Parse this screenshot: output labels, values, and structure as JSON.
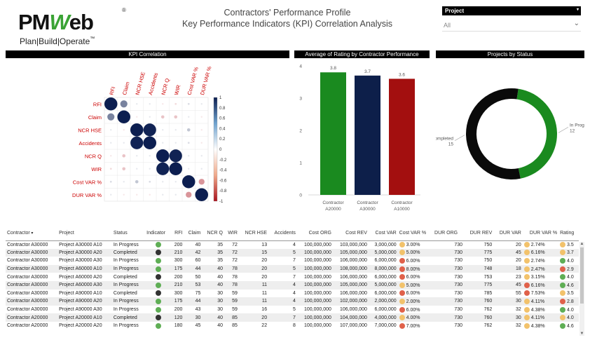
{
  "logo": {
    "brand_pre": "PM",
    "brand_w": "W",
    "brand_post": "eb",
    "reg": "®",
    "tagline": "Plan|Build|Operate",
    "tm": "™"
  },
  "title": {
    "line1": "Contractors' Performance Profile",
    "line2": "Key Performance Indicators (KPI) Correlation Analysis"
  },
  "slicer": {
    "label": "Project",
    "value": "All"
  },
  "sections": {
    "corr": "KPI Correlation",
    "avg": "Average of Rating by Contractor Performance",
    "status": "Projects by Status"
  },
  "correlation": {
    "labels": [
      "RFI",
      "Claim",
      "NCR HSE",
      "Accidents",
      "NCR Q",
      "WIR",
      "Cost VAR %",
      "DUR VAR %"
    ],
    "colorbar_ticks": [
      "1",
      "0.8",
      "0.6",
      "0.4",
      "0.2",
      "0",
      "-0.2",
      "-0.4",
      "-0.6",
      "-0.8",
      "-1"
    ],
    "matrix": [
      [
        1,
        0.55,
        0.1,
        0.1,
        -0.1,
        -0.15,
        0.15,
        0.1
      ],
      [
        0.55,
        1,
        -0.1,
        0.1,
        -0.25,
        -0.25,
        0.1,
        -0.1
      ],
      [
        0.1,
        -0.1,
        1,
        0.98,
        0.1,
        0.1,
        0.25,
        -0.1
      ],
      [
        0.1,
        0.1,
        0.98,
        1,
        0.1,
        0.1,
        0.15,
        -0.1
      ],
      [
        -0.1,
        -0.25,
        0.1,
        0.1,
        1,
        0.98,
        0.1,
        0.1
      ],
      [
        -0.15,
        -0.25,
        0.1,
        0.1,
        0.98,
        1,
        0.1,
        0.1
      ],
      [
        0.15,
        0.1,
        0.25,
        0.15,
        0.1,
        0.1,
        1,
        -0.45
      ],
      [
        0.1,
        -0.1,
        -0.1,
        -0.1,
        0.1,
        0.1,
        -0.45,
        1
      ]
    ]
  },
  "chart_data": [
    {
      "type": "bar",
      "title": "Average of Rating by Contractor Performance",
      "categories": [
        "Contractor A20000",
        "Contractor A30000",
        "Contractor A10000"
      ],
      "values": [
        3.8,
        3.7,
        3.6
      ],
      "colors": [
        "#1a8a1f",
        "#0d1f4a",
        "#a30f0f"
      ],
      "ylim": [
        0,
        4
      ],
      "yticks": [
        "0",
        "1",
        "2",
        "3",
        "4"
      ],
      "grid": false
    },
    {
      "type": "pie",
      "title": "Projects by Status",
      "donut": true,
      "slices": [
        {
          "label": "In Progress",
          "value": 12,
          "color": "#1a8a1f"
        },
        {
          "label": "Completed",
          "value": 15,
          "color": "#0a0a0a"
        }
      ]
    }
  ],
  "table": {
    "columns": [
      "Contractor",
      "Project",
      "Status",
      "Indicator",
      "RFI",
      "Claim",
      "NCR Q",
      "WIR",
      "NCR HSE",
      "Accidents",
      "Cost ORG",
      "Cost REV",
      "Cost VAR",
      "Cost VAR %",
      "DUR ORG",
      "DUR REV",
      "DUR VAR",
      "DUR VAR %",
      "Rating"
    ],
    "rows": [
      [
        "Contractor A30000",
        "Project A30000 A10",
        "In Progress",
        "#5fae55",
        "200",
        "40",
        "35",
        "72",
        "13",
        "4",
        "100,000,000",
        "103,000,000",
        "3,000,000",
        "#f2c26b",
        "3.00%",
        "730",
        "750",
        "20",
        "#f2c26b",
        "2.74%",
        "#f2c26b",
        "3.5"
      ],
      [
        "Contractor A30000",
        "Project A30000 A20",
        "Completed",
        "#333333",
        "210",
        "42",
        "35",
        "72",
        "15",
        "5",
        "100,000,000",
        "105,000,000",
        "5,000,000",
        "#f2c26b",
        "5.00%",
        "730",
        "775",
        "45",
        "#f2c26b",
        "6.16%",
        "#f2c26b",
        "3.7"
      ],
      [
        "Contractor A30000",
        "Project A30000 A30",
        "In Progress",
        "#5fae55",
        "300",
        "60",
        "35",
        "72",
        "20",
        "7",
        "100,000,000",
        "106,000,000",
        "6,000,000",
        "#e0614a",
        "6.00%",
        "730",
        "750",
        "20",
        "#f2c26b",
        "2.74%",
        "#5fae55",
        "4.0"
      ],
      [
        "Contractor A30000",
        "Project A60000 A10",
        "In Progress",
        "#5fae55",
        "175",
        "44",
        "40",
        "78",
        "20",
        "5",
        "100,000,000",
        "108,000,000",
        "8,000,000",
        "#e0614a",
        "8.00%",
        "730",
        "748",
        "18",
        "#f2c26b",
        "2.47%",
        "#e0614a",
        "2.9"
      ],
      [
        "Contractor A30000",
        "Project A60000 A20",
        "Completed",
        "#333333",
        "200",
        "50",
        "40",
        "78",
        "20",
        "7",
        "100,000,000",
        "106,000,000",
        "6,000,000",
        "#e0614a",
        "6.00%",
        "730",
        "753",
        "23",
        "#f2c26b",
        "3.15%",
        "#5fae55",
        "4.0"
      ],
      [
        "Contractor A30000",
        "Project A60000 A30",
        "In Progress",
        "#5fae55",
        "210",
        "53",
        "40",
        "78",
        "11",
        "4",
        "100,000,000",
        "105,000,000",
        "5,000,000",
        "#f2c26b",
        "5.00%",
        "730",
        "775",
        "45",
        "#e0614a",
        "6.16%",
        "#5fae55",
        "4.6"
      ],
      [
        "Contractor A30000",
        "Project A90000 A10",
        "Completed",
        "#333333",
        "300",
        "75",
        "30",
        "59",
        "11",
        "4",
        "100,000,000",
        "106,000,000",
        "6,000,000",
        "#e0614a",
        "6.00%",
        "730",
        "785",
        "55",
        "#e0614a",
        "7.53%",
        "#f2c26b",
        "3.5"
      ],
      [
        "Contractor A30000",
        "Project A90000 A20",
        "In Progress",
        "#5fae55",
        "175",
        "44",
        "30",
        "59",
        "11",
        "4",
        "100,000,000",
        "102,000,000",
        "2,000,000",
        "#f2c26b",
        "2.00%",
        "730",
        "760",
        "30",
        "#f2c26b",
        "4.11%",
        "#e0614a",
        "2.8"
      ],
      [
        "Contractor A30000",
        "Project A90000 A30",
        "In Progress",
        "#5fae55",
        "200",
        "43",
        "30",
        "59",
        "16",
        "5",
        "100,000,000",
        "106,000,000",
        "6,000,000",
        "#e0614a",
        "6.00%",
        "730",
        "762",
        "32",
        "#f2c26b",
        "4.38%",
        "#5fae55",
        "4.0"
      ],
      [
        "Contractor A20000",
        "Project A20000 A10",
        "Completed",
        "#333333",
        "120",
        "30",
        "40",
        "85",
        "20",
        "7",
        "100,000,000",
        "104,000,000",
        "4,000,000",
        "#f2c26b",
        "4.00%",
        "730",
        "760",
        "30",
        "#f2c26b",
        "4.11%",
        "#f2c26b",
        "4.0"
      ],
      [
        "Contractor A20000",
        "Project A20000 A20",
        "In Progress",
        "#5fae55",
        "180",
        "45",
        "40",
        "85",
        "22",
        "8",
        "100,000,000",
        "107,000,000",
        "7,000,000",
        "#e0614a",
        "7.00%",
        "730",
        "762",
        "32",
        "#f2c26b",
        "4.38%",
        "#5fae55",
        "4.6"
      ]
    ]
  }
}
